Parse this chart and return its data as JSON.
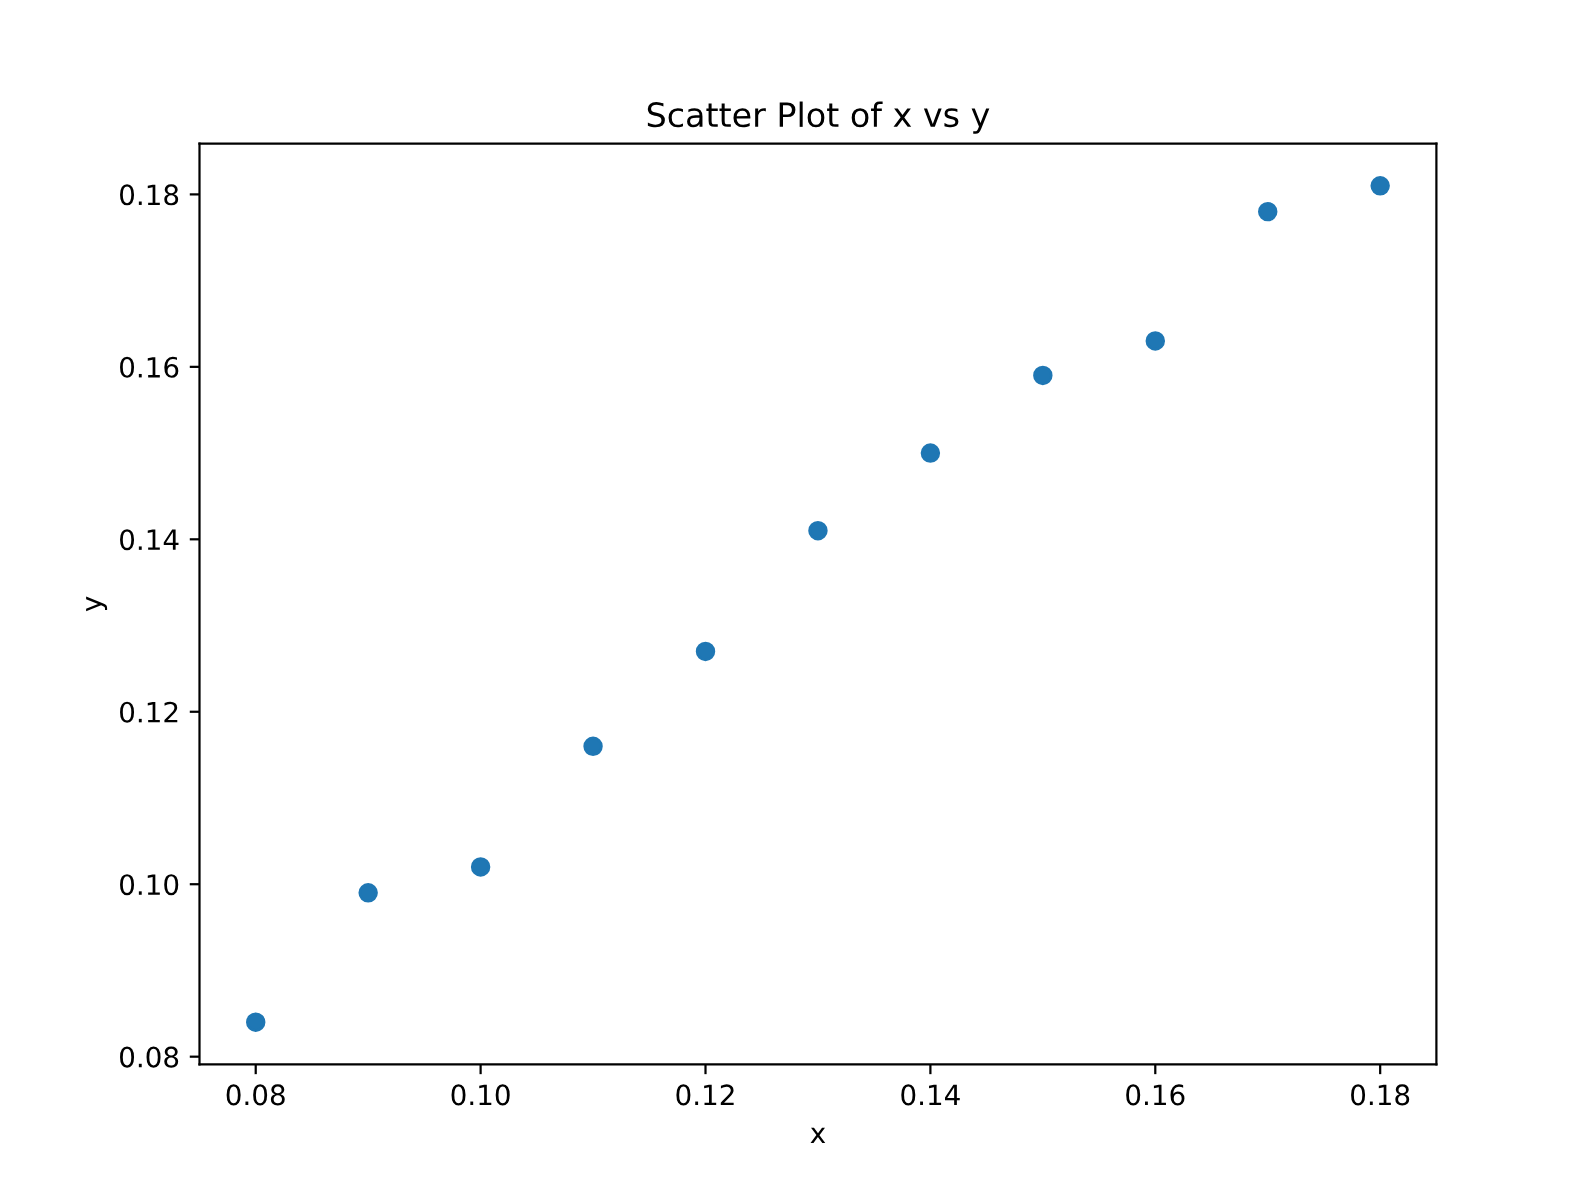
{
  "chart_data": {
    "type": "scatter",
    "title": "Scatter Plot of x vs y",
    "xlabel": "x",
    "ylabel": "y",
    "x": [
      0.08,
      0.09,
      0.1,
      0.11,
      0.12,
      0.13,
      0.14,
      0.15,
      0.16,
      0.17,
      0.18
    ],
    "series": [
      {
        "color": "#1f77b4",
        "values": [
          0.084,
          0.099,
          0.102,
          0.116,
          0.127,
          0.141,
          0.15,
          0.159,
          0.163,
          0.178,
          0.181
        ]
      }
    ],
    "xlim": [
      0.075,
      0.185
    ],
    "ylim": [
      0.0791,
      0.1859
    ],
    "xticks": [
      {
        "value": 0.08,
        "label": "0.08"
      },
      {
        "value": 0.1,
        "label": "0.10"
      },
      {
        "value": 0.12,
        "label": "0.12"
      },
      {
        "value": 0.14,
        "label": "0.14"
      },
      {
        "value": 0.16,
        "label": "0.16"
      },
      {
        "value": 0.18,
        "label": "0.18"
      }
    ],
    "yticks": [
      {
        "value": 0.08,
        "label": "0.08"
      },
      {
        "value": 0.1,
        "label": "0.10"
      },
      {
        "value": 0.12,
        "label": "0.12"
      },
      {
        "value": 0.14,
        "label": "0.14"
      },
      {
        "value": 0.16,
        "label": "0.16"
      },
      {
        "value": 0.18,
        "label": "0.18"
      }
    ],
    "grid": false,
    "marker": "circle"
  }
}
